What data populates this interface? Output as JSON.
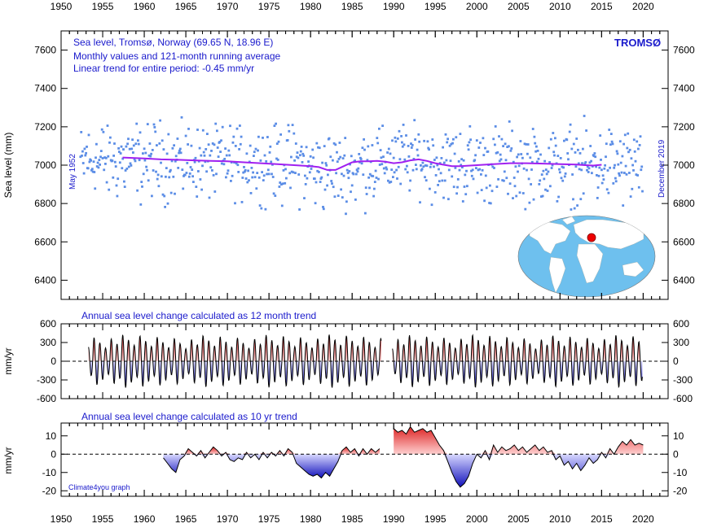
{
  "chart_data": [
    {
      "type": "scatter",
      "panel": "main",
      "info_lines": [
        "Sea level, Tromsø, Norway (69.65 N, 18.96 E)",
        "Monthly values and 121-month running average",
        "Linear trend for entire period: -0.45 mm/yr"
      ],
      "station_label": "TROMSØ",
      "start_label": "May 1952",
      "end_label": "December 2019",
      "ylabel": "Sea level (mm)",
      "xlim": [
        1950,
        2023
      ],
      "ylim": [
        6300,
        7700
      ],
      "x_ticks": [
        1950,
        1955,
        1960,
        1965,
        1970,
        1975,
        1980,
        1985,
        1990,
        1995,
        2000,
        2005,
        2010,
        2015,
        2020
      ],
      "y_ticks": [
        6400,
        6600,
        6800,
        7000,
        7200,
        7400,
        7600
      ],
      "series": [
        {
          "kind": "monthly_points",
          "color": "#5b8de6"
        },
        {
          "name": "",
          "kind": "running_average",
          "color": "#a020f0",
          "x": [
            1957.4,
            1960,
            1962,
            1964,
            1966,
            1968,
            1970,
            1972,
            1974,
            1976,
            1978,
            1980,
            1981,
            1982,
            1983,
            1984,
            1985,
            1986,
            1987,
            1988,
            1989,
            1990,
            1991,
            1992,
            1993,
            1994,
            1995,
            1996,
            1997,
            1998,
            2000,
            2002,
            2004,
            2006,
            2008,
            2010,
            2012,
            2013,
            2014,
            2015
          ],
          "y": [
            7040,
            7035,
            7030,
            7028,
            7025,
            7022,
            7020,
            7015,
            7010,
            7005,
            7000,
            6995,
            6990,
            6975,
            6975,
            6995,
            7015,
            7020,
            7020,
            7022,
            7018,
            7010,
            7015,
            7025,
            7030,
            7022,
            7010,
            7002,
            6995,
            6995,
            7000,
            7005,
            7010,
            7010,
            7008,
            7005,
            7003,
            7000,
            6998,
            7002
          ]
        }
      ],
      "inset_map": {
        "marker_color": "#ee0000",
        "ocean_color": "#6ec0ee",
        "land_color": "#ffffff"
      }
    },
    {
      "type": "area",
      "panel": "12-month trend",
      "title": "Annual sea level change calculated as 12 month trend",
      "ylabel": "mm/yr",
      "ylim": [
        -600,
        600
      ],
      "y_ticks": [
        600,
        300,
        0,
        -300,
        -600
      ],
      "gap": [
        1988.5,
        1989.8
      ],
      "x_start": 1953.3,
      "x_end": 2019.9,
      "amplitude_range": [
        200,
        430
      ],
      "colors": {
        "positive": "#dd3333",
        "negative": "#2233cc"
      }
    },
    {
      "type": "area",
      "panel": "10-year trend",
      "title": "Annual sea level change calculated as 10 yr trend",
      "ylabel": "mm/yr",
      "ylim": [
        -23,
        17
      ],
      "y_ticks": [
        10,
        0,
        -10,
        -20
      ],
      "credit": "Climate4you graph",
      "x": [
        1962.3,
        1962.8,
        1963.3,
        1963.8,
        1964.3,
        1964.8,
        1965.3,
        1965.8,
        1966.3,
        1966.8,
        1967.3,
        1967.8,
        1968.3,
        1968.8,
        1969.3,
        1969.8,
        1970.3,
        1970.8,
        1971.3,
        1971.8,
        1972.3,
        1972.8,
        1973.3,
        1973.8,
        1974.3,
        1974.8,
        1975.3,
        1975.8,
        1976.3,
        1976.8,
        1977.3,
        1977.8,
        1978.3,
        1978.8,
        1979.3,
        1979.8,
        1980.3,
        1980.8,
        1981.3,
        1981.8,
        1982.3,
        1982.8,
        1983.3,
        1983.8,
        1984.3,
        1984.8,
        1985.3,
        1985.8,
        1986.3,
        1986.8,
        1987.3,
        1987.8,
        1988.3,
        null,
        1990.0,
        1990.5,
        1991.0,
        1991.5,
        1992.0,
        1992.5,
        1993.0,
        1993.5,
        1994.0,
        1994.5,
        1995.0,
        1995.5,
        1996.0,
        1996.5,
        1997.0,
        1997.5,
        1998.0,
        1998.5,
        1999.0,
        1999.5,
        2000.0,
        2000.5,
        2001.0,
        2001.5,
        2002.0,
        2002.5,
        2003.0,
        2003.5,
        2004.0,
        2004.5,
        2005.0,
        2005.5,
        2006.0,
        2006.5,
        2007.0,
        2007.5,
        2008.0,
        2008.5,
        2009.0,
        2009.5,
        2010.0,
        2010.5,
        2011.0,
        2011.5,
        2012.0,
        2012.5,
        2013.0,
        2013.5,
        2014.0,
        2014.5,
        2015.0,
        2015.5,
        2016.0,
        2016.5,
        2017.0,
        2017.5,
        2018.0,
        2018.5,
        2019.0,
        2019.5,
        2020.0
      ],
      "values": [
        -2,
        -5,
        -8,
        -10,
        -3,
        -1,
        3,
        1,
        -1,
        2,
        -2,
        1,
        4,
        2,
        -1,
        1,
        -3,
        -4,
        -2,
        -3,
        1,
        -2,
        0,
        -3,
        1,
        -2,
        1,
        -1,
        2,
        -1,
        3,
        1,
        -5,
        -7,
        -9,
        -11,
        -12,
        -11,
        -13,
        -10,
        -12,
        -8,
        -4,
        2,
        4,
        1,
        3,
        -1,
        3,
        0,
        3,
        1,
        3,
        null,
        14,
        12,
        13,
        11,
        15,
        12,
        13,
        14,
        12,
        13,
        9,
        5,
        2,
        -4,
        -10,
        -15,
        -18,
        -16,
        -12,
        -5,
        0,
        -2,
        2,
        -3,
        5,
        1,
        4,
        2,
        3,
        5,
        2,
        4,
        1,
        3,
        5,
        2,
        4,
        1,
        2,
        -3,
        -1,
        -6,
        -4,
        -8,
        -5,
        -9,
        -6,
        -2,
        -5,
        -3,
        1,
        -2,
        3,
        0,
        4,
        7,
        5,
        8,
        5,
        6,
        5
      ],
      "colors": {
        "positive": "#dd3333",
        "negative": "#2233cc"
      }
    }
  ]
}
